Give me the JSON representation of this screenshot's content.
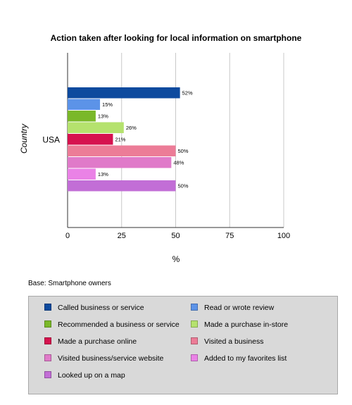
{
  "chart_data": {
    "type": "bar",
    "orientation": "horizontal",
    "title": "Action taken after looking for local information on smartphone",
    "xlabel": "%",
    "ylabel": "Country",
    "categories": [
      "USA"
    ],
    "xlim": [
      0,
      100
    ],
    "xticks": [
      0,
      25,
      50,
      75,
      100
    ],
    "grid": true,
    "value_suffix": "%",
    "series": [
      {
        "name": "Called business or service",
        "values": [
          52
        ],
        "color": "#0d4a9e"
      },
      {
        "name": "Read or wrote review",
        "values": [
          15
        ],
        "color": "#5c93e8"
      },
      {
        "name": "Recommended a business or service",
        "values": [
          13
        ],
        "color": "#7ab829"
      },
      {
        "name": "Made a purchase in-store",
        "values": [
          26
        ],
        "color": "#b5e26e"
      },
      {
        "name": "Made a purchase online",
        "values": [
          21
        ],
        "color": "#d6124e"
      },
      {
        "name": "Visited a business",
        "values": [
          50
        ],
        "color": "#ec7c97"
      },
      {
        "name": "Visited business/service website",
        "values": [
          48
        ],
        "color": "#e07ac9"
      },
      {
        "name": "Added to my favorites list",
        "values": [
          13
        ],
        "color": "#ea82e6"
      },
      {
        "name": "Looked up on a map",
        "values": [
          50
        ],
        "color": "#c26ed6"
      }
    ]
  },
  "footnote": "Base: Smartphone owners",
  "legend_position": "bottom"
}
